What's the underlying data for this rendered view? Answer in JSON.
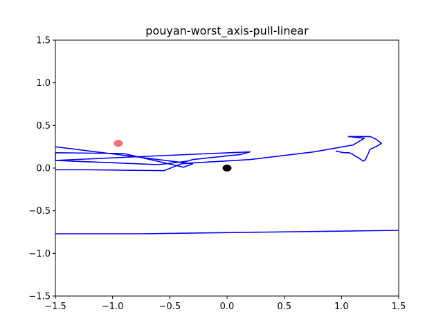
{
  "chart_data": {
    "type": "line",
    "title": "pouyan-worst_axis-pull-linear",
    "xlabel": "",
    "ylabel": "",
    "xlim": [
      -1.5,
      1.5
    ],
    "ylim": [
      -1.5,
      1.5
    ],
    "xticks": [
      -1.5,
      -1.0,
      -0.5,
      0.0,
      0.5,
      1.0,
      1.5
    ],
    "yticks": [
      -1.5,
      -1.0,
      -0.5,
      0.0,
      0.5,
      1.0,
      1.5
    ],
    "xtick_labels": [
      "−1.5",
      "−1.0",
      "−0.5",
      "0.0",
      "0.5",
      "1.0",
      "1.5"
    ],
    "ytick_labels": [
      "−1.5",
      "−1.0",
      "−0.5",
      "0.0",
      "0.5",
      "1.0",
      "1.5"
    ],
    "grid": false,
    "series": [
      {
        "color": "#0000ff",
        "x": [
          0.95,
          1.02,
          1.07,
          1.1,
          1.12,
          1.15,
          1.17,
          1.19,
          1.21,
          1.23,
          1.25,
          1.3,
          1.35,
          1.3,
          1.25,
          1.16,
          1.06,
          1.2,
          1.1,
          0.76,
          0.2,
          -0.3,
          -0.4,
          -0.55,
          -1.2,
          -1.5
        ],
        "y": [
          0.2,
          0.18,
          0.18,
          0.16,
          0.14,
          0.12,
          0.1,
          0.08,
          0.1,
          0.16,
          0.22,
          0.25,
          0.29,
          0.34,
          0.37,
          0.37,
          0.37,
          0.35,
          0.27,
          0.19,
          0.1,
          0.06,
          0.05,
          -0.03,
          -0.02,
          -0.02
        ]
      },
      {
        "color": "#0000ff",
        "x": [
          1.5,
          -0.75,
          -1.5
        ],
        "y": [
          -0.73,
          -0.77,
          -0.77
        ]
      },
      {
        "color": "#0000ff",
        "x": [
          -1.5,
          -0.3,
          -0.38,
          -0.9,
          -1.5,
          -1.5,
          -0.5,
          0.2,
          0.12,
          -0.3,
          -0.35,
          -0.6,
          -1.5
        ],
        "y": [
          0.25,
          0.05,
          0.01,
          0.17,
          0.18,
          0.09,
          0.15,
          0.19,
          0.16,
          0.1,
          0.08,
          0.04,
          0.09
        ]
      }
    ],
    "points": [
      {
        "x": -0.95,
        "y": 0.29,
        "color": "#f06464"
      },
      {
        "x": 0.0,
        "y": 0.0,
        "color": "#000000"
      }
    ]
  }
}
